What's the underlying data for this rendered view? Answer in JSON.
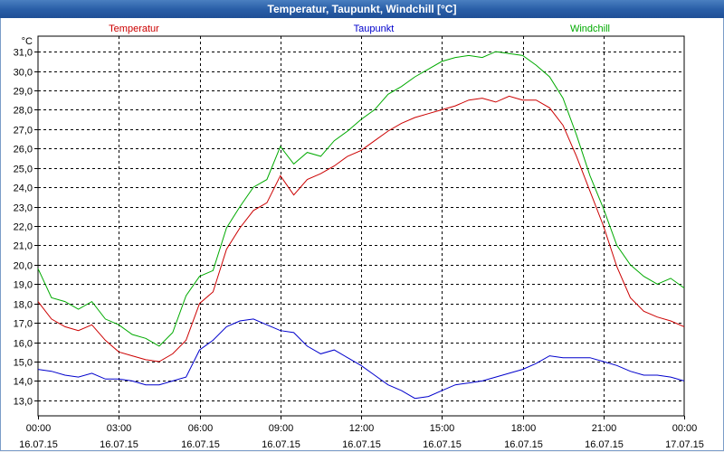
{
  "window": {
    "title": "Temperatur, Taupunkt, Windchill [°C]"
  },
  "chart_data": {
    "type": "line",
    "title": "Temperatur, Taupunkt, Windchill [°C]",
    "ylabel": "°C",
    "ylim": [
      12.2,
      31.8
    ],
    "yticks": [
      "13,0",
      "14,0",
      "15,0",
      "16,0",
      "17,0",
      "18,0",
      "19,0",
      "20,0",
      "21,0",
      "22,0",
      "23,0",
      "24,0",
      "25,0",
      "26,0",
      "27,0",
      "28,0",
      "29,0",
      "30,0",
      "31,0"
    ],
    "xlim": [
      0,
      24
    ],
    "xticks": [
      {
        "time": "00:00",
        "date": "16.07.15"
      },
      {
        "time": "03:00",
        "date": "16.07.15"
      },
      {
        "time": "06:00",
        "date": "16.07.15"
      },
      {
        "time": "09:00",
        "date": "16.07.15"
      },
      {
        "time": "12:00",
        "date": "16.07.15"
      },
      {
        "time": "15:00",
        "date": "16.07.15"
      },
      {
        "time": "18:00",
        "date": "16.07.15"
      },
      {
        "time": "21:00",
        "date": "16.07.15"
      },
      {
        "time": "00:00",
        "date": "17.07.15"
      }
    ],
    "series": [
      {
        "name": "Temperatur",
        "color": "#cc0000",
        "x": [
          0,
          0.5,
          1,
          1.5,
          2,
          2.5,
          3,
          3.5,
          4,
          4.5,
          5,
          5.5,
          6,
          6.5,
          7,
          7.5,
          8,
          8.5,
          9,
          9.5,
          10,
          10.5,
          11,
          11.5,
          12,
          12.5,
          13,
          13.5,
          14,
          14.5,
          15,
          15.5,
          16,
          16.5,
          17,
          17.5,
          18,
          18.5,
          19,
          19.5,
          20,
          20.5,
          21,
          21.5,
          22,
          22.5,
          23,
          23.5,
          24
        ],
        "values": [
          18.1,
          17.2,
          16.8,
          16.6,
          16.9,
          16.1,
          15.5,
          15.3,
          15.1,
          15.0,
          15.4,
          16.1,
          18.0,
          18.6,
          20.8,
          21.9,
          22.8,
          23.2,
          24.6,
          23.6,
          24.4,
          24.7,
          25.1,
          25.6,
          25.9,
          26.4,
          26.9,
          27.3,
          27.6,
          27.8,
          28.0,
          28.2,
          28.5,
          28.6,
          28.4,
          28.7,
          28.5,
          28.5,
          28.1,
          27.2,
          25.6,
          23.8,
          22.0,
          19.9,
          18.3,
          17.6,
          17.3,
          17.1,
          16.8
        ]
      },
      {
        "name": "Taupunkt",
        "color": "#0000cc",
        "x": [
          0,
          0.5,
          1,
          1.5,
          2,
          2.5,
          3,
          3.5,
          4,
          4.5,
          5,
          5.5,
          6,
          6.5,
          7,
          7.5,
          8,
          8.5,
          9,
          9.5,
          10,
          10.5,
          11,
          11.5,
          12,
          12.5,
          13,
          13.5,
          14,
          14.5,
          15,
          15.5,
          16,
          16.5,
          17,
          17.5,
          18,
          18.5,
          19,
          19.5,
          20,
          20.5,
          21,
          21.5,
          22,
          22.5,
          23,
          23.5,
          24
        ],
        "values": [
          14.6,
          14.5,
          14.3,
          14.2,
          14.4,
          14.1,
          14.1,
          14.0,
          13.8,
          13.8,
          14.0,
          14.2,
          15.6,
          16.1,
          16.8,
          17.1,
          17.2,
          16.9,
          16.6,
          16.5,
          15.8,
          15.4,
          15.6,
          15.2,
          14.8,
          14.3,
          13.8,
          13.5,
          13.1,
          13.2,
          13.5,
          13.8,
          13.9,
          14.0,
          14.2,
          14.4,
          14.6,
          14.9,
          15.3,
          15.2,
          15.2,
          15.2,
          15.0,
          14.8,
          14.5,
          14.3,
          14.3,
          14.2,
          14.0
        ]
      },
      {
        "name": "Windchill",
        "color": "#00aa00",
        "x": [
          0,
          0.5,
          1,
          1.5,
          2,
          2.5,
          3,
          3.5,
          4,
          4.5,
          5,
          5.5,
          6,
          6.5,
          7,
          7.5,
          8,
          8.5,
          9,
          9.5,
          10,
          10.5,
          11,
          11.5,
          12,
          12.5,
          13,
          13.5,
          14,
          14.5,
          15,
          15.5,
          16,
          16.5,
          17,
          17.5,
          18,
          18.5,
          19,
          19.5,
          20,
          20.5,
          21,
          21.5,
          22,
          22.5,
          23,
          23.5,
          24
        ],
        "values": [
          19.8,
          18.3,
          18.1,
          17.7,
          18.1,
          17.2,
          16.9,
          16.4,
          16.2,
          15.8,
          16.5,
          18.4,
          19.4,
          19.7,
          21.9,
          23.0,
          24.0,
          24.4,
          26.1,
          25.2,
          25.8,
          25.6,
          26.4,
          26.9,
          27.5,
          28.0,
          28.8,
          29.2,
          29.7,
          30.1,
          30.5,
          30.7,
          30.8,
          30.7,
          31.0,
          30.9,
          30.8,
          30.3,
          29.7,
          28.6,
          26.7,
          24.6,
          22.9,
          21.0,
          20.0,
          19.4,
          19.0,
          19.3,
          18.8
        ]
      }
    ]
  }
}
